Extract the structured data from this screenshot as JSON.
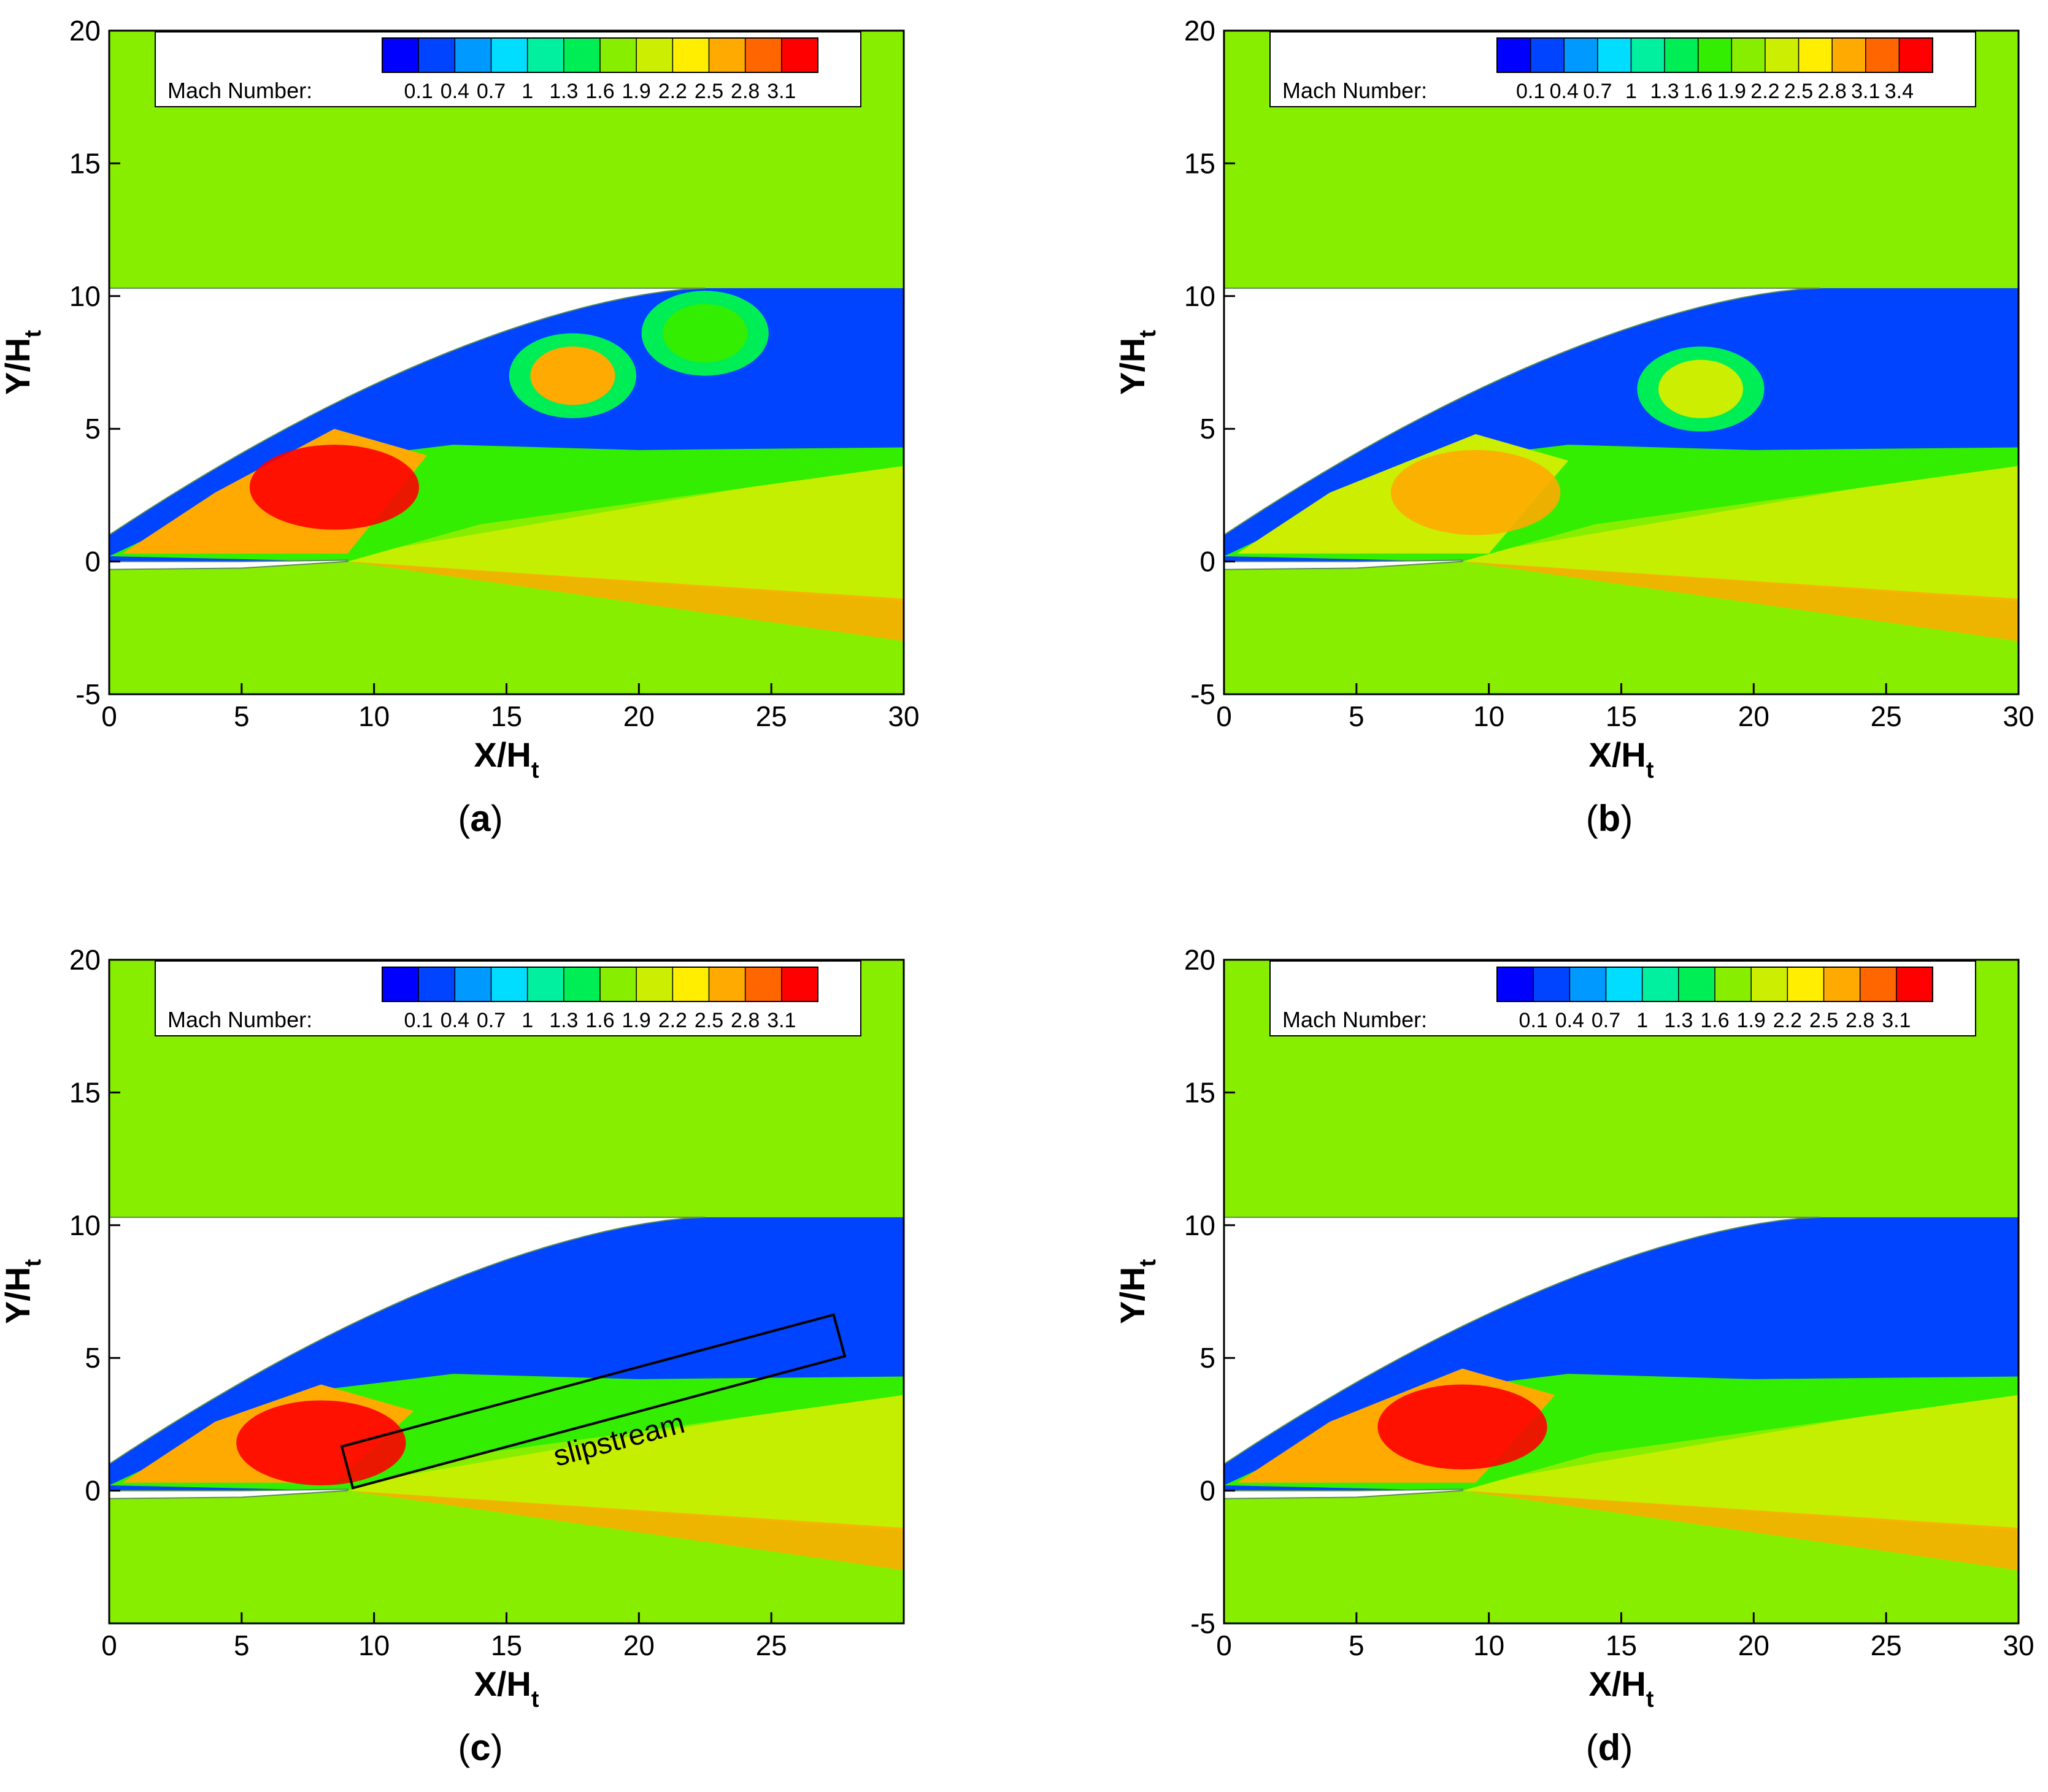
{
  "colorbar": {
    "label": "Mach Number:",
    "ticks_3_1": [
      "0.1",
      "0.4",
      "0.7",
      "1",
      "1.3",
      "1.6",
      "1.9",
      "2.2",
      "2.5",
      "2.8",
      "3.1"
    ],
    "ticks_3_4": [
      "0.1",
      "0.4",
      "0.7",
      "1",
      "1.3",
      "1.6",
      "1.9",
      "2.2",
      "2.5",
      "2.8",
      "3.1",
      "3.4"
    ],
    "colors": [
      "#0000ff",
      "#0044ff",
      "#0099ff",
      "#00ddff",
      "#00f0a0",
      "#00ee55",
      "#33ee00",
      "#88ee00",
      "#ccee00",
      "#ffee00",
      "#ffaa00",
      "#ff6600",
      "#ff0000"
    ]
  },
  "chart_data": [
    {
      "panel": "a",
      "type": "heatmap",
      "quantity": "Mach number contours",
      "caption": "a",
      "xlabel": "X/H",
      "xlabel_sub": "t",
      "ylabel": "Y/H",
      "ylabel_sub": "t",
      "xlim": [
        0,
        30
      ],
      "ylim": [
        -5,
        20
      ],
      "xticks": [
        "0",
        "5",
        "10",
        "15",
        "20",
        "25",
        "30"
      ],
      "yticks": [
        "-5",
        "0",
        "5",
        "10",
        "15",
        "20"
      ],
      "colorbar_range": [
        0.1,
        3.1
      ],
      "core_mach": 3.1,
      "wall_y": 10.3,
      "features": [
        {
          "type": "expansion_core",
          "x": 8.5,
          "y": 2.8,
          "mach": 3.0
        },
        {
          "type": "shock_cell",
          "x": 17.5,
          "y": 7.0,
          "mach": 2.6
        },
        {
          "type": "shock_cell",
          "x": 22.5,
          "y": 8.6,
          "mach": 1.6
        },
        {
          "type": "subsonic_band",
          "x": 20,
          "y": 5.5,
          "mach": 0.2
        }
      ]
    },
    {
      "panel": "b",
      "type": "heatmap",
      "quantity": "Mach number contours",
      "caption": "b",
      "xlabel": "X/H",
      "xlabel_sub": "t",
      "ylabel": "Y/H",
      "ylabel_sub": "t",
      "xlim": [
        0,
        30
      ],
      "ylim": [
        -5,
        20
      ],
      "xticks": [
        "0",
        "5",
        "10",
        "15",
        "20",
        "25",
        "30"
      ],
      "yticks": [
        "-5",
        "0",
        "5",
        "10",
        "15",
        "20"
      ],
      "colorbar_range": [
        0.1,
        3.4
      ],
      "core_mach": 2.8,
      "wall_y": 10.3,
      "features": [
        {
          "type": "expansion_core",
          "x": 9.5,
          "y": 2.6,
          "mach": 2.8
        },
        {
          "type": "shock_cell",
          "x": 18.0,
          "y": 6.5,
          "mach": 2.3
        },
        {
          "type": "subsonic_band",
          "x": 23,
          "y": 5.5,
          "mach": 0.2
        }
      ]
    },
    {
      "panel": "c",
      "type": "heatmap",
      "quantity": "Mach number contours",
      "caption": "c",
      "xlabel": "X/H",
      "xlabel_sub": "t",
      "ylabel": "Y/H",
      "ylabel_sub": "t",
      "xlim": [
        0,
        30
      ],
      "ylim": [
        -5,
        20
      ],
      "xticks": [
        "0",
        "5",
        "10",
        "15",
        "20",
        "25"
      ],
      "yticks": [
        "0",
        "5",
        "10",
        "15",
        "20"
      ],
      "colorbar_range": [
        0.1,
        3.1
      ],
      "core_mach": 3.0,
      "wall_y": 10.3,
      "annotation": "slipstream",
      "features": [
        {
          "type": "expansion_core",
          "x": 8.0,
          "y": 1.8,
          "mach": 3.0
        },
        {
          "type": "subsonic_band",
          "x": 17,
          "y": 6.5,
          "mach": 0.3
        }
      ]
    },
    {
      "panel": "d",
      "type": "heatmap",
      "quantity": "Mach number contours",
      "caption": "d",
      "xlabel": "X/H",
      "xlabel_sub": "t",
      "ylabel": "Y/H",
      "ylabel_sub": "t",
      "xlim": [
        0,
        30
      ],
      "ylim": [
        -5,
        20
      ],
      "xticks": [
        "0",
        "5",
        "10",
        "15",
        "20",
        "25",
        "30"
      ],
      "yticks": [
        "-5",
        "0",
        "5",
        "10",
        "15",
        "20"
      ],
      "colorbar_range": [
        0.1,
        3.1
      ],
      "core_mach": 3.1,
      "wall_y": 10.3,
      "features": [
        {
          "type": "expansion_core",
          "x": 9.0,
          "y": 2.4,
          "mach": 3.1
        },
        {
          "type": "subsonic_band",
          "x": 18,
          "y": 7.0,
          "mach": 0.2
        }
      ]
    }
  ]
}
